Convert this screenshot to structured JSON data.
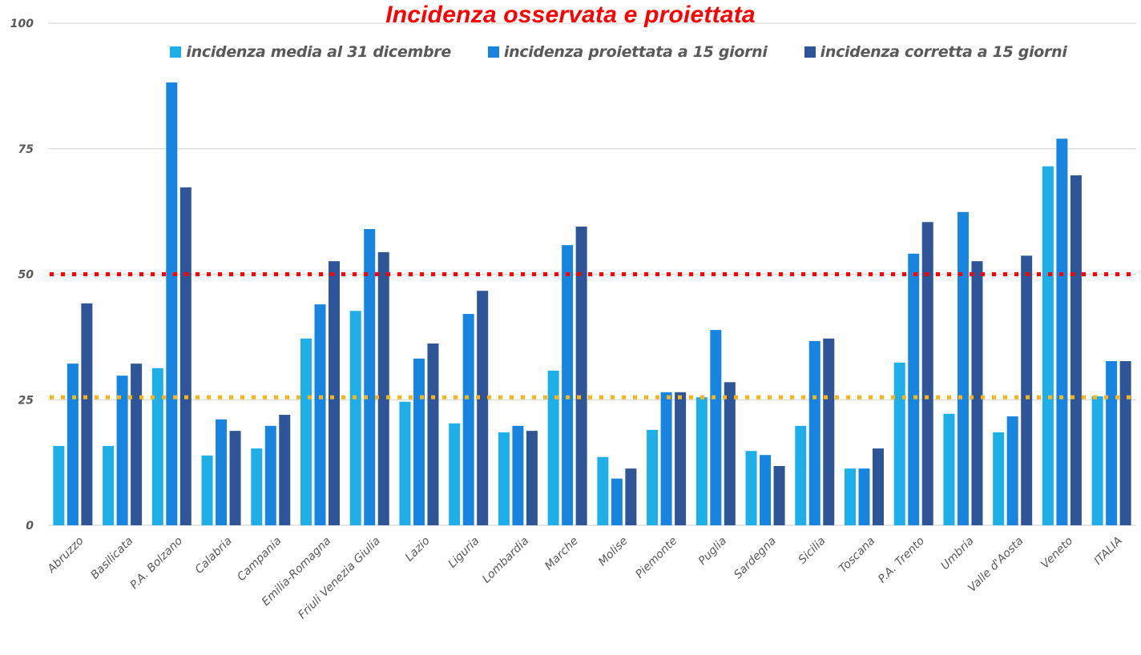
{
  "chart_data": {
    "type": "bar",
    "title": "Incidenza osservata e proiettata",
    "xlabel": "",
    "ylabel": "",
    "ylim": [
      0,
      100
    ],
    "yticks": [
      0,
      25,
      50,
      75,
      100
    ],
    "grid": true,
    "legend_position": "top-center",
    "categories": [
      "Abruzzo",
      "Basilicata",
      "P.A. Bolzano",
      "Calabria",
      "Campania",
      "Emilia-Romagna",
      "Friuli Venezia Giulia",
      "Lazio",
      "Liguria",
      "Lombardia",
      "Marche",
      "Molise",
      "Piemonte",
      "Puglia",
      "Sardegna",
      "Sicilia",
      "Toscana",
      "P.A. Trento",
      "Umbria",
      "Valle d'Aosta",
      "Veneto",
      "ITALIA"
    ],
    "series": [
      {
        "name": "incidenza media al 31 dicembre",
        "color": "#1eaee8",
        "values": [
          15.8,
          15.8,
          31.3,
          13.9,
          15.3,
          37.2,
          42.7,
          24.6,
          20.3,
          18.5,
          30.8,
          13.6,
          19.0,
          25.5,
          14.8,
          19.8,
          11.3,
          32.4,
          22.2,
          18.5,
          71.5,
          25.7
        ]
      },
      {
        "name": "incidenza proiettata a 15 giorni",
        "color": "#1784e0",
        "values": [
          32.2,
          29.8,
          88.2,
          21.1,
          19.8,
          44.0,
          59.0,
          33.2,
          42.1,
          19.8,
          55.8,
          9.3,
          26.5,
          38.9,
          14.0,
          36.7,
          11.3,
          54.1,
          62.4,
          21.7,
          77.0,
          32.7
        ]
      },
      {
        "name": "incidenza corretta a 15 giorni",
        "color": "#2e5597",
        "values": [
          44.2,
          32.2,
          67.3,
          18.8,
          22.0,
          52.6,
          54.4,
          36.2,
          46.7,
          18.8,
          59.5,
          11.3,
          26.5,
          28.5,
          11.8,
          37.2,
          15.3,
          60.4,
          52.6,
          53.7,
          69.7,
          32.7
        ]
      }
    ],
    "reference_lines": [
      {
        "value": 50,
        "color": "#ff0000",
        "style": "dotted"
      },
      {
        "value": 25.5,
        "color": "#fcb414",
        "style": "dotted"
      }
    ]
  }
}
